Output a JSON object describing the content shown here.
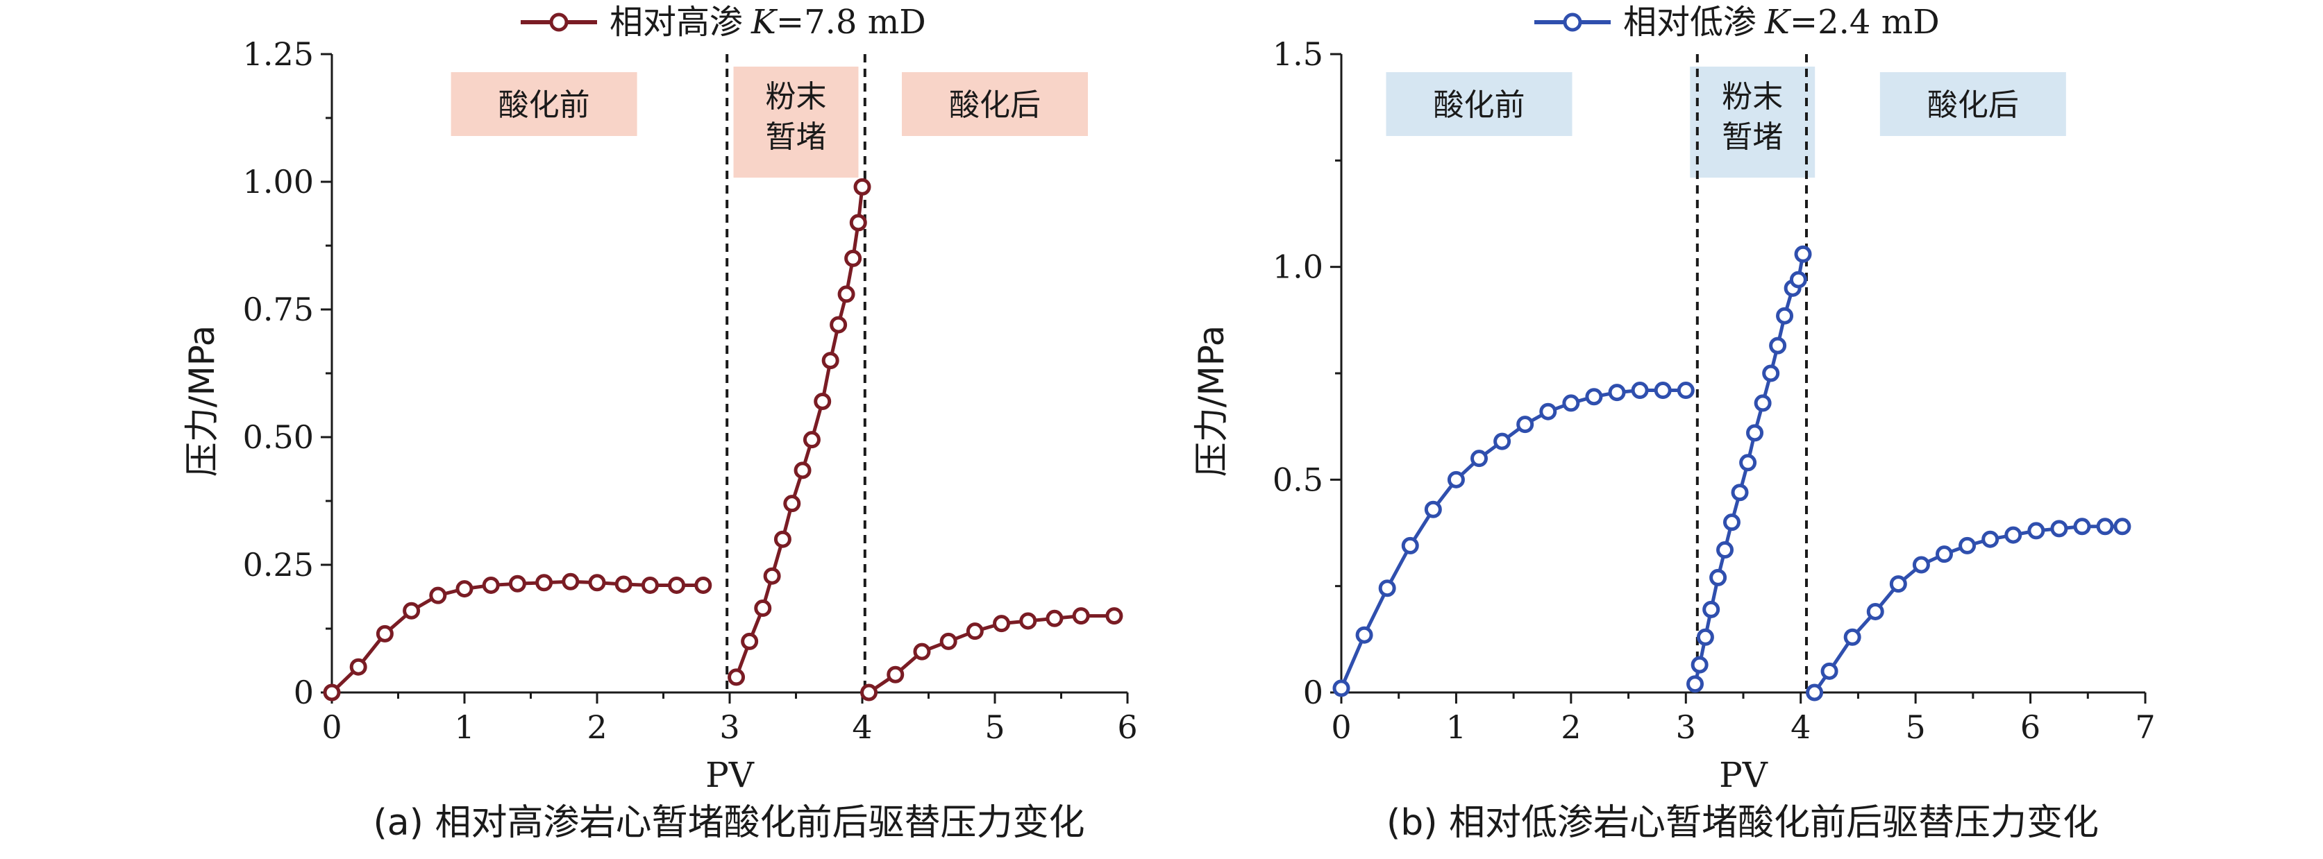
{
  "chart_data": [
    {
      "type": "line",
      "title": "",
      "legend": "相对高渗 K=7.8 mD",
      "legend_parts": {
        "label": "相对高渗",
        "var": "K",
        "rest": "=7.8 mD"
      },
      "xlabel": "PV",
      "ylabel": "压力/MPa",
      "xlim": [
        0,
        6
      ],
      "ylim": [
        0,
        1.25
      ],
      "xticks": [
        "0",
        "1",
        "2",
        "3",
        "4",
        "5",
        "6"
      ],
      "yticks": [
        "0",
        "0.25",
        "0.50",
        "0.75",
        "1.00",
        "1.25"
      ],
      "caption": "(a) 相对高渗岩心暂堵酸化前后驱替压力变化",
      "color": "#7a1c24",
      "dividers": [
        2.98,
        4.02
      ],
      "phases": [
        {
          "label": "酸化前",
          "x": 1.6,
          "color": "#f8d4c8"
        },
        {
          "label": "粉末\n暂堵",
          "x": 3.5,
          "color": "#f8d4c8"
        },
        {
          "label": "酸化后",
          "x": 5.0,
          "color": "#f8d4c8"
        }
      ],
      "series": [
        {
          "x": [
            0,
            0.2,
            0.4,
            0.6,
            0.8,
            1.0,
            1.2,
            1.4,
            1.6,
            1.8,
            2.0,
            2.2,
            2.4,
            2.6,
            2.8
          ],
          "y": [
            0,
            0.05,
            0.115,
            0.16,
            0.19,
            0.203,
            0.21,
            0.213,
            0.215,
            0.217,
            0.215,
            0.212,
            0.21,
            0.21,
            0.21
          ]
        },
        {
          "x": [
            3.05,
            3.15,
            3.25,
            3.32,
            3.4,
            3.47,
            3.55,
            3.62,
            3.7,
            3.76,
            3.82,
            3.88,
            3.93,
            3.97,
            4.0
          ],
          "y": [
            0.03,
            0.1,
            0.165,
            0.228,
            0.3,
            0.37,
            0.435,
            0.495,
            0.57,
            0.65,
            0.72,
            0.78,
            0.85,
            0.92,
            0.99
          ]
        },
        {
          "x": [
            4.05,
            4.25,
            4.45,
            4.65,
            4.85,
            5.05,
            5.25,
            5.45,
            5.65,
            5.9
          ],
          "y": [
            0,
            0.035,
            0.08,
            0.1,
            0.12,
            0.135,
            0.14,
            0.145,
            0.15,
            0.15
          ]
        }
      ]
    },
    {
      "type": "line",
      "title": "",
      "legend": "相对低渗 K=2.4 mD",
      "legend_parts": {
        "label": "相对低渗",
        "var": "K",
        "rest": "=2.4 mD"
      },
      "xlabel": "PV",
      "ylabel": "压力/MPa",
      "xlim": [
        0,
        7
      ],
      "ylim": [
        0,
        1.5
      ],
      "xticks": [
        "0",
        "1",
        "2",
        "3",
        "4",
        "5",
        "6",
        "7"
      ],
      "yticks": [
        "0",
        "0.5",
        "1.0",
        "1.5"
      ],
      "caption": "(b) 相对低渗岩心暂堵酸化前后驱替压力变化",
      "color": "#2f4fae",
      "dividers": [
        3.1,
        4.05
      ],
      "phases": [
        {
          "label": "酸化前",
          "x": 1.2,
          "color": "#d6e6f2"
        },
        {
          "label": "粉末\n暂堵",
          "x": 3.58,
          "color": "#d6e6f2"
        },
        {
          "label": "酸化后",
          "x": 5.5,
          "color": "#d6e6f2"
        }
      ],
      "series": [
        {
          "x": [
            0,
            0.2,
            0.4,
            0.6,
            0.8,
            1.0,
            1.2,
            1.4,
            1.6,
            1.8,
            2.0,
            2.2,
            2.4,
            2.6,
            2.8,
            3.0
          ],
          "y": [
            0.01,
            0.135,
            0.245,
            0.345,
            0.43,
            0.5,
            0.55,
            0.59,
            0.63,
            0.66,
            0.68,
            0.695,
            0.705,
            0.71,
            0.71,
            0.71
          ]
        },
        {
          "x": [
            3.08,
            3.12,
            3.17,
            3.22,
            3.28,
            3.34,
            3.4,
            3.47,
            3.54,
            3.6,
            3.67,
            3.74,
            3.8,
            3.86,
            3.93,
            3.98,
            4.02
          ],
          "y": [
            0.02,
            0.065,
            0.13,
            0.195,
            0.27,
            0.335,
            0.4,
            0.47,
            0.54,
            0.61,
            0.68,
            0.75,
            0.815,
            0.885,
            0.95,
            0.97,
            1.03
          ]
        },
        {
          "x": [
            4.12,
            4.25,
            4.45,
            4.65,
            4.85,
            5.05,
            5.25,
            5.45,
            5.65,
            5.85,
            6.05,
            6.25,
            6.45,
            6.65,
            6.8
          ],
          "y": [
            0,
            0.05,
            0.13,
            0.19,
            0.255,
            0.3,
            0.325,
            0.345,
            0.36,
            0.37,
            0.38,
            0.385,
            0.39,
            0.39,
            0.39
          ]
        }
      ]
    }
  ]
}
